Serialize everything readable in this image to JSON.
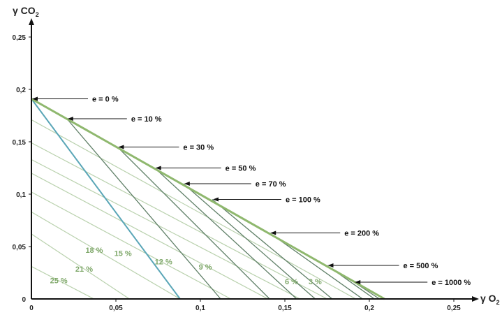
{
  "chart_data": {
    "type": "line",
    "xlabel": "γ O",
    "xlabel_sub": "2",
    "ylabel": "γ CO",
    "ylabel_sub": "2",
    "xlim": [
      0,
      0.27
    ],
    "ylim": [
      0,
      0.27
    ],
    "x_ticks": [
      0,
      0.05,
      0.1,
      0.15,
      0.2,
      0.25
    ],
    "x_tick_labels": [
      "0",
      "0,05",
      "0,1",
      "0,15",
      "0,2",
      "0,25"
    ],
    "y_ticks": [
      0,
      0.05,
      0.1,
      0.15,
      0.2,
      0.25
    ],
    "y_tick_labels": [
      "0",
      "0,05",
      "0,1",
      "0,15",
      "0,2",
      "0,25"
    ],
    "grid": false,
    "colors": {
      "boundary": "#8fb86e",
      "excess_air": "#5f7f67",
      "iso_co2": "#b9d1ad",
      "highlight": "#5aa6b7",
      "axis": "#111111"
    },
    "boundary": {
      "x": [
        0,
        0.209
      ],
      "y": [
        0.191,
        0
      ]
    },
    "excess_air_lines": [
      {
        "label": "e = 0 %",
        "x": [
          0,
          0.088
        ],
        "y": [
          0.191,
          0
        ]
      },
      {
        "label": "e = 10 %",
        "x": [
          0.021,
          0.112
        ],
        "y": [
          0.172,
          0
        ]
      },
      {
        "label": "e = 30 %",
        "x": [
          0.051,
          0.141
        ],
        "y": [
          0.145,
          0
        ]
      },
      {
        "label": "e = 50 %",
        "x": [
          0.073,
          0.157
        ],
        "y": [
          0.125,
          0
        ]
      },
      {
        "label": "e = 70 %",
        "x": [
          0.09,
          0.168
        ],
        "y": [
          0.11,
          0
        ]
      },
      {
        "label": "e = 100 %",
        "x": [
          0.107,
          0.178
        ],
        "y": [
          0.095,
          0
        ]
      },
      {
        "label": "e = 200 %",
        "x": [
          0.141,
          0.196
        ],
        "y": [
          0.063,
          0
        ]
      },
      {
        "label": "e = 500 %",
        "x": [
          0.175,
          0.203
        ],
        "y": [
          0.032,
          0
        ]
      },
      {
        "label": "e = 1000 %",
        "x": [
          0.191,
          0.206
        ],
        "y": [
          0.016,
          0
        ]
      }
    ],
    "iso_lines": [
      {
        "label": "25 %",
        "x": [
          0,
          0.037
        ],
        "y": [
          0.031,
          0
        ]
      },
      {
        "label": "21 %",
        "x": [
          0,
          0.058
        ],
        "y": [
          0.062,
          0
        ]
      },
      {
        "label": "18 %",
        "x": [
          0,
          0.088
        ],
        "y": [
          0.083,
          0
        ]
      },
      {
        "label": "15 %",
        "x": [
          0,
          0.118
        ],
        "y": [
          0.102,
          0
        ]
      },
      {
        "label": "12 %",
        "x": [
          0,
          0.14
        ],
        "y": [
          0.12,
          0
        ]
      },
      {
        "label": "9 %",
        "x": [
          0,
          0.159
        ],
        "y": [
          0.133,
          0
        ]
      },
      {
        "label": "6 %",
        "x": [
          0,
          0.175
        ],
        "y": [
          0.149,
          0
        ]
      },
      {
        "label": "3 %",
        "x": [
          0,
          0.192
        ],
        "y": [
          0.171,
          0
        ]
      }
    ]
  }
}
